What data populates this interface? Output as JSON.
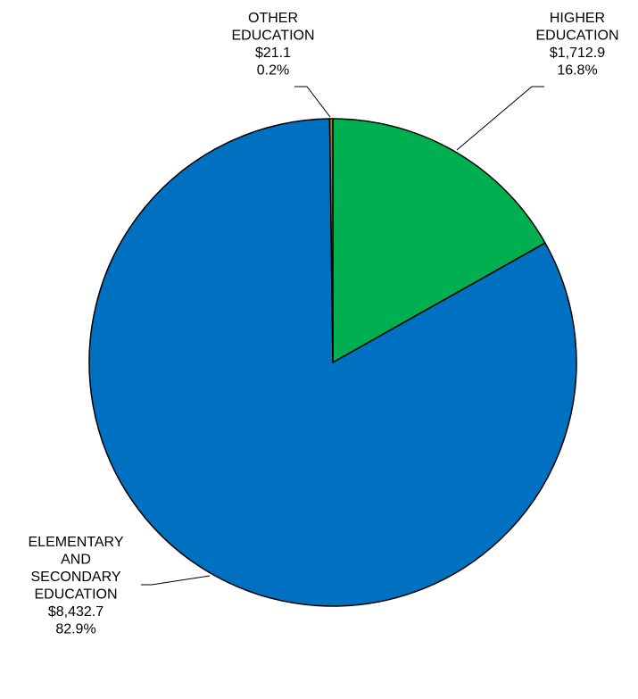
{
  "chart_data": {
    "type": "pie",
    "title": "",
    "slices": [
      {
        "label_lines": [
          "HIGHER",
          "EDUCATION"
        ],
        "amount": "$1,712.9",
        "percent_label": "16.8%",
        "value": 1712.9,
        "color": "#00B050"
      },
      {
        "label_lines": [
          "ELEMENTARY",
          "AND",
          "SECONDARY",
          "EDUCATION"
        ],
        "amount": "$8,432.7",
        "percent_label": "82.9%",
        "value": 8432.7,
        "color": "#0070C0"
      },
      {
        "label_lines": [
          "OTHER",
          "EDUCATION"
        ],
        "amount": "$21.1",
        "percent_label": "0.2%",
        "value": 21.1,
        "color": "#C07000"
      }
    ]
  }
}
